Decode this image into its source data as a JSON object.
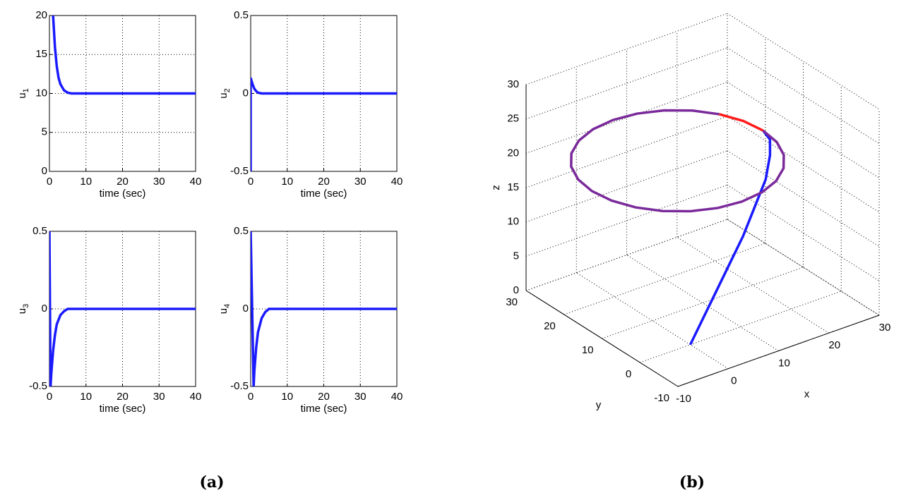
{
  "chart_data": [
    {
      "type": "line",
      "ylabel": "u",
      "ylabel_subscript": "1",
      "xlabel": "time (sec)",
      "color": "#1a1aff",
      "x": [
        1,
        1.5,
        2,
        2.5,
        3,
        4,
        5,
        6,
        40
      ],
      "values": [
        20,
        16,
        13.5,
        12,
        11.2,
        10.4,
        10.1,
        10,
        10
      ],
      "xlim": [
        0,
        40
      ],
      "xticks": [
        0,
        10,
        20,
        30,
        40
      ],
      "ylim": [
        0,
        20
      ],
      "yticks": [
        0,
        5,
        10,
        15,
        20
      ],
      "grid": true
    },
    {
      "type": "line",
      "ylabel": "u",
      "ylabel_subscript": "2",
      "xlabel": "time (sec)",
      "color": "#1a1aff",
      "x": [
        0,
        0,
        0.5,
        1,
        1.5,
        2,
        3,
        40
      ],
      "values": [
        -0.5,
        0.1,
        0.06,
        0.03,
        0.015,
        0.005,
        0,
        0
      ],
      "xlim": [
        0,
        40
      ],
      "xticks": [
        0,
        10,
        20,
        30,
        40
      ],
      "ylim": [
        -0.5,
        0.5
      ],
      "yticks": [
        -0.5,
        0,
        0.5
      ],
      "grid": true
    },
    {
      "type": "line",
      "ylabel": "u",
      "ylabel_subscript": "3",
      "xlabel": "time (sec)",
      "color": "#1a1aff",
      "x": [
        0,
        0.3,
        0.5,
        1,
        1.5,
        2,
        3,
        4,
        5,
        40
      ],
      "values": [
        0.5,
        -0.5,
        -0.42,
        -0.27,
        -0.17,
        -0.1,
        -0.04,
        -0.015,
        0,
        0
      ],
      "xlim": [
        0,
        40
      ],
      "xticks": [
        0,
        10,
        20,
        30,
        40
      ],
      "ylim": [
        -0.5,
        0.5
      ],
      "yticks": [
        -0.5,
        0,
        0.5
      ],
      "grid": true
    },
    {
      "type": "line",
      "ylabel": "u",
      "ylabel_subscript": "4",
      "xlabel": "time (sec)",
      "color": "#1a1aff",
      "x": [
        0,
        0.8,
        1,
        1.5,
        2,
        3,
        4,
        5,
        40
      ],
      "values": [
        0.5,
        -0.5,
        -0.4,
        -0.25,
        -0.15,
        -0.06,
        -0.02,
        0,
        0
      ],
      "xlim": [
        0,
        40
      ],
      "xticks": [
        0,
        10,
        20,
        30,
        40
      ],
      "ylim": [
        -0.5,
        0.5
      ],
      "yticks": [
        -0.5,
        0,
        0.5
      ],
      "grid": true
    },
    {
      "type": "line3d",
      "xlabel": "x",
      "ylabel": "y",
      "zlabel": "z",
      "grid": true,
      "xlim": [
        -10,
        30
      ],
      "xticks": [
        -10,
        0,
        10,
        20,
        30
      ],
      "ylim": [
        -10,
        30
      ],
      "yticks": [
        -10,
        0,
        10,
        20,
        30
      ],
      "zlim": [
        0,
        30
      ],
      "zticks": [
        0,
        5,
        10,
        15,
        20,
        25,
        30
      ],
      "series": [
        {
          "color": "#1a1aff",
          "x": [
            0,
            3,
            6,
            9,
            12,
            15,
            18,
            20,
            21.5,
            22
          ],
          "y": [
            0,
            0.5,
            1,
            1.5,
            2,
            3,
            4,
            5.5,
            7.5,
            10
          ],
          "z": [
            0,
            3,
            6,
            9,
            12,
            15,
            18,
            20.5,
            21.7,
            22
          ]
        },
        {
          "color": "#ff1a1a",
          "x": [
            22,
            21.42,
            19.72
          ],
          "y": [
            10,
            14.4,
            18.5
          ],
          "z": [
            22,
            22,
            22
          ]
        },
        {
          "color": "#7a2a9a",
          "x": [
            19.72,
            17.02,
            13.5,
            9.4,
            5,
            0.6,
            -3.5,
            -7.02,
            -9.72,
            -11.42,
            -12,
            -11.42,
            -9.72,
            -7.02,
            -3.5,
            0.6,
            5,
            9.4,
            13.5,
            17.02,
            19.72,
            21.42,
            22
          ],
          "y": [
            18.5,
            22.02,
            24.72,
            26.42,
            27,
            26.42,
            24.72,
            22.02,
            18.5,
            14.4,
            10,
            5.6,
            1.5,
            -2.02,
            -4.72,
            -6.42,
            -7,
            -6.42,
            -4.72,
            -2.02,
            1.5,
            5.6,
            10
          ],
          "z": [
            22,
            22,
            22,
            22,
            22,
            22,
            22,
            22,
            22,
            22,
            22,
            22,
            22,
            22,
            22,
            22,
            22,
            22,
            22,
            22,
            22,
            22,
            22
          ]
        }
      ]
    }
  ],
  "captions": [
    "(a)",
    "(b)"
  ]
}
